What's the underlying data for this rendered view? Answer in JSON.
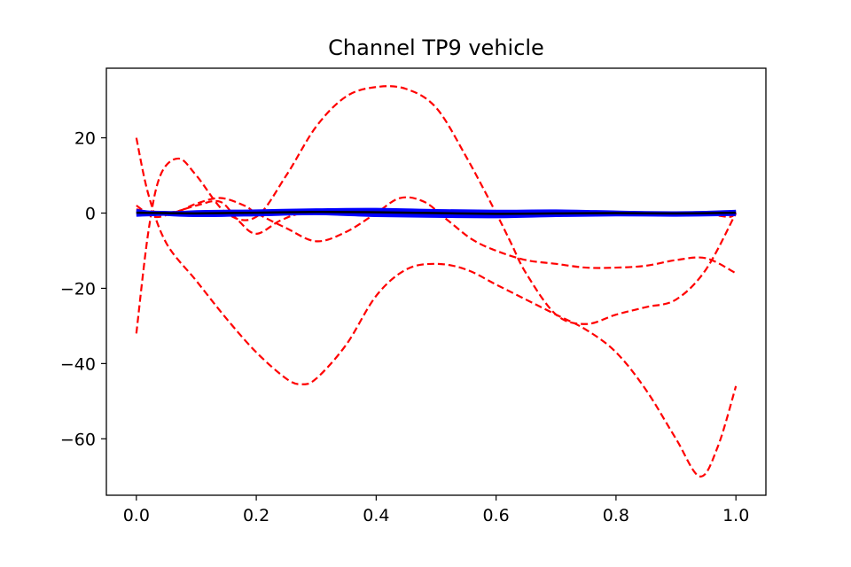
{
  "chart_data": {
    "type": "line",
    "title": "Channel TP9 vehicle",
    "xlabel": "",
    "ylabel": "",
    "xlim": [
      -0.05,
      1.05
    ],
    "ylim": [
      -75,
      38.5
    ],
    "grid": false,
    "legend": "none",
    "x_ticks": [
      {
        "value": 0.0,
        "label": "0.0"
      },
      {
        "value": 0.2,
        "label": "0.2"
      },
      {
        "value": 0.4,
        "label": "0.4"
      },
      {
        "value": 0.6,
        "label": "0.6"
      },
      {
        "value": 0.8,
        "label": "0.8"
      },
      {
        "value": 1.0,
        "label": "1.0"
      }
    ],
    "y_ticks": [
      {
        "value": 20,
        "label": "20"
      },
      {
        "value": 0,
        "label": "0"
      },
      {
        "value": -20,
        "label": "−20"
      },
      {
        "value": -40,
        "label": "−40"
      },
      {
        "value": -60,
        "label": "−60"
      }
    ],
    "series": [
      {
        "color": "#ff0000",
        "style": "dashed",
        "x": [
          0.0,
          0.02,
          0.05,
          0.1,
          0.15,
          0.2,
          0.25,
          0.275,
          0.3,
          0.35,
          0.4,
          0.45,
          0.5,
          0.55,
          0.6,
          0.65,
          0.7,
          0.75,
          0.8,
          0.85,
          0.9,
          0.94,
          0.97,
          1.0
        ],
        "y": [
          20,
          5,
          -8,
          -18,
          -28,
          -37,
          -44,
          -45.5,
          -44,
          -35,
          -22,
          -15,
          -13.5,
          -15,
          -19,
          -23,
          -27,
          -31,
          -37,
          -47,
          -60,
          -70,
          -62,
          -46
        ]
      },
      {
        "color": "#ff0000",
        "style": "dashed",
        "x": [
          0.0,
          0.02,
          0.04,
          0.07,
          0.1,
          0.15,
          0.2,
          0.25,
          0.3,
          0.35,
          0.4,
          0.45,
          0.5,
          0.55,
          0.6,
          0.625,
          0.65,
          0.7,
          0.75,
          0.8,
          0.85,
          0.9,
          0.95,
          1.0
        ],
        "y": [
          -32,
          -5,
          10,
          14.5,
          10,
          0,
          -1,
          10,
          23,
          31,
          33.5,
          33,
          28,
          15,
          0,
          -8,
          -16,
          -27,
          -29.5,
          -27,
          -25,
          -23,
          -15,
          0
        ]
      },
      {
        "color": "#ff0000",
        "style": "dashed",
        "x": [
          0.0,
          0.03,
          0.07,
          0.1,
          0.14,
          0.18,
          0.2,
          0.25,
          0.3,
          0.35,
          0.4,
          0.44,
          0.48,
          0.52,
          0.56,
          0.6,
          0.65,
          0.7,
          0.75,
          0.8,
          0.85,
          0.9,
          0.95,
          1.0
        ],
        "y": [
          1,
          0,
          0.5,
          2.5,
          4,
          2,
          0,
          -4,
          -7.5,
          -5,
          0,
          4,
          3,
          -2,
          -7,
          -10,
          -12.5,
          -13.5,
          -14.5,
          -14.5,
          -14,
          -12.5,
          -12,
          -16
        ]
      },
      {
        "color": "#ff0000",
        "style": "dashed",
        "x": [
          0.0,
          0.03,
          0.06,
          0.1,
          0.14,
          0.17,
          0.2,
          0.24,
          0.28,
          0.35,
          0.42,
          0.5,
          0.6,
          0.7,
          0.8,
          0.9,
          0.96,
          0.99,
          1.0
        ],
        "y": [
          2,
          -1,
          0,
          2,
          3,
          -2,
          -5.5,
          -2,
          0,
          0,
          0.2,
          -0.3,
          0,
          0,
          0,
          0,
          -0.5,
          -1,
          0
        ]
      },
      {
        "color": "#0000ff",
        "style": "solid",
        "width": 4,
        "x": [
          0.0,
          0.05,
          0.1,
          0.2,
          0.3,
          0.4,
          0.5,
          0.6,
          0.7,
          0.8,
          0.9,
          1.0
        ],
        "y": [
          -0.5,
          -0.2,
          0.3,
          0.5,
          0.8,
          0.9,
          0.6,
          0.4,
          0.5,
          0.2,
          -0.1,
          0.4
        ]
      },
      {
        "color": "#0000ff",
        "style": "solid",
        "width": 4,
        "x": [
          0.0,
          0.05,
          0.1,
          0.2,
          0.3,
          0.4,
          0.5,
          0.6,
          0.7,
          0.8,
          0.9,
          1.0
        ],
        "y": [
          0.6,
          -0.3,
          -0.6,
          -0.4,
          -0.1,
          -0.6,
          -0.8,
          -0.9,
          -0.6,
          -0.4,
          -0.5,
          -0.3
        ]
      },
      {
        "color": "#0000ff",
        "style": "solid",
        "width": 4,
        "x": [
          0.0,
          0.05,
          0.1,
          0.2,
          0.3,
          0.4,
          0.5,
          0.6,
          0.7,
          0.8,
          0.9,
          1.0
        ],
        "y": [
          0.2,
          0.1,
          0.0,
          0.2,
          0.4,
          0.2,
          0.1,
          -0.1,
          0.0,
          0.1,
          0.0,
          0.2
        ]
      },
      {
        "color": "#000000",
        "style": "solid",
        "width": 2.5,
        "x": [
          0.0,
          0.05,
          0.1,
          0.2,
          0.3,
          0.4,
          0.5,
          0.6,
          0.7,
          0.8,
          0.9,
          1.0
        ],
        "y": [
          0.1,
          0.0,
          -0.1,
          0.1,
          0.3,
          0.2,
          0.0,
          -0.2,
          -0.1,
          0.0,
          -0.1,
          0.1
        ]
      }
    ]
  }
}
